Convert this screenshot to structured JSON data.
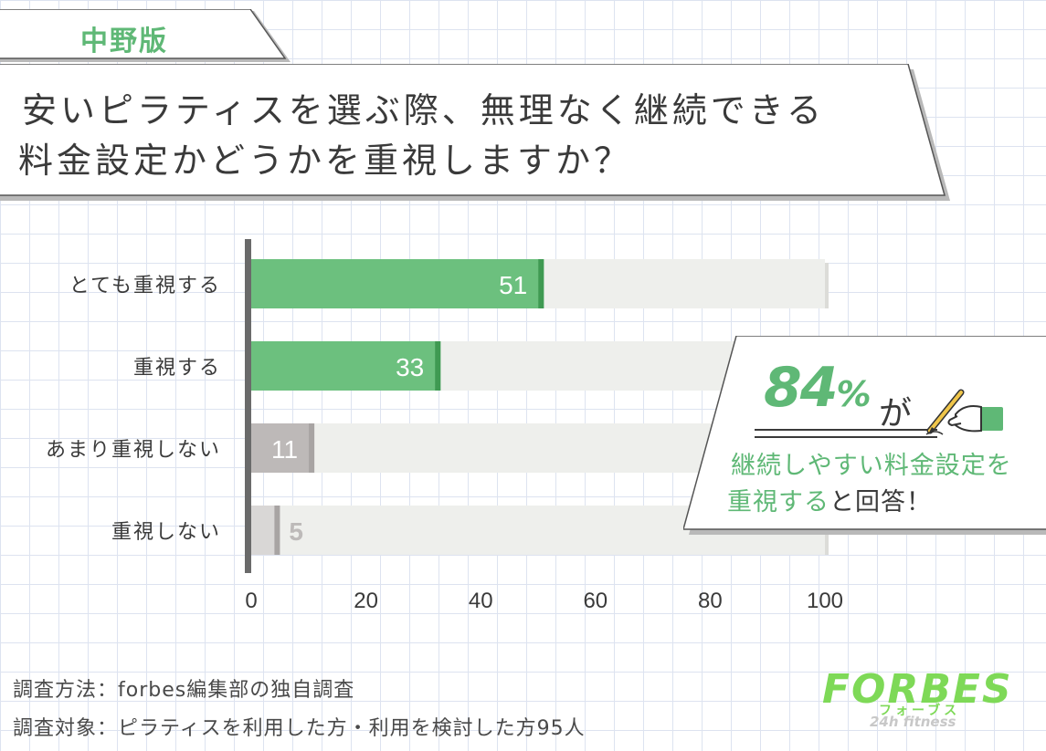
{
  "tag": "中野版",
  "title": {
    "line1": "安いピラティスを選ぶ際、無理なく継続できる",
    "line2": "料金設定かどうかを重視しますか？"
  },
  "colors": {
    "accent_green": "#6cc07e",
    "accent_green_dark": "#3f9a52",
    "gray_bar": "#bdb9b8",
    "gray_bar_light": "#d9d7d6",
    "track": "#eeefec",
    "text": "#3a3a3a",
    "logo_green": "#7ed957"
  },
  "chart_data": {
    "type": "bar",
    "orientation": "horizontal",
    "categories": [
      "とても重視する",
      "重視する",
      "あまり重視しない",
      "重視しない"
    ],
    "values": [
      51,
      33,
      11,
      5
    ],
    "xlim": [
      0,
      100
    ],
    "x_ticks": [
      "0",
      "20",
      "40",
      "60",
      "80",
      "100"
    ],
    "bar_colors": [
      "#6cc07e",
      "#6cc07e",
      "#bdb9b8",
      "#d9d7d6"
    ],
    "grid": false
  },
  "callout": {
    "percent": "84",
    "percent_sign": "%",
    "suffix": "が",
    "line1": "継続しやすい料金設定を",
    "line2_green": "重視する",
    "line2_dark": "と回答！",
    "icon": "hand-writing-pen-icon"
  },
  "footer": {
    "method": "調査方法：forbes編集部の独自調査",
    "target": "調査対象：ピラティスを利用した方・利用を検討した方95人"
  },
  "logo": {
    "main": "FORBES",
    "kana": "フォーブス",
    "sub": "24h fitness"
  }
}
